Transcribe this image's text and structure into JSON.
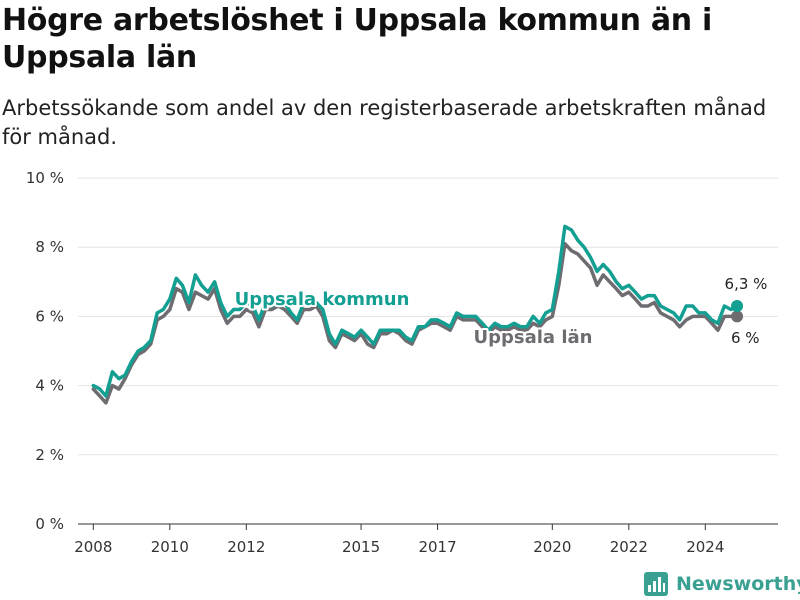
{
  "header": {
    "title": "Högre arbetslöshet i Uppsala kommun än i Uppsala län",
    "subtitle": "Arbetssökande som andel av den registerbaserade arbetskraften månad för månad."
  },
  "footer": {
    "logo_text": "Newsworthy",
    "logo_color": "#3aa091"
  },
  "chart_data": {
    "type": "line",
    "xlim": [
      2007.6,
      2025.9
    ],
    "ylim": [
      0,
      10
    ],
    "grid": true,
    "x_ticks": [
      2008,
      2010,
      2012,
      2015,
      2017,
      2020,
      2022,
      2024
    ],
    "x_tick_labels": [
      "2008",
      "2010",
      "2012",
      "2015",
      "2017",
      "2020",
      "2022",
      "2024"
    ],
    "y_ticks": [
      0,
      2,
      4,
      6,
      8,
      10
    ],
    "y_tick_labels": [
      "0 %",
      "2 %",
      "4 %",
      "6 %",
      "8 %",
      "10 %"
    ],
    "series": [
      {
        "name": "Uppsala län",
        "color": "#6e6c70",
        "end_label": "6 %",
        "points": [
          [
            2008.0,
            3.9
          ],
          [
            2008.17,
            3.7
          ],
          [
            2008.33,
            3.5
          ],
          [
            2008.5,
            4.0
          ],
          [
            2008.67,
            3.9
          ],
          [
            2008.83,
            4.2
          ],
          [
            2009.0,
            4.6
          ],
          [
            2009.17,
            4.9
          ],
          [
            2009.33,
            5.0
          ],
          [
            2009.5,
            5.2
          ],
          [
            2009.67,
            5.9
          ],
          [
            2009.83,
            6.0
          ],
          [
            2010.0,
            6.2
          ],
          [
            2010.17,
            6.8
          ],
          [
            2010.33,
            6.7
          ],
          [
            2010.5,
            6.2
          ],
          [
            2010.67,
            6.7
          ],
          [
            2010.83,
            6.6
          ],
          [
            2011.0,
            6.5
          ],
          [
            2011.17,
            6.8
          ],
          [
            2011.33,
            6.2
          ],
          [
            2011.5,
            5.8
          ],
          [
            2011.67,
            6.0
          ],
          [
            2011.83,
            6.0
          ],
          [
            2012.0,
            6.2
          ],
          [
            2012.17,
            6.1
          ],
          [
            2012.33,
            5.7
          ],
          [
            2012.5,
            6.2
          ],
          [
            2012.67,
            6.2
          ],
          [
            2012.83,
            6.3
          ],
          [
            2013.0,
            6.2
          ],
          [
            2013.17,
            6.0
          ],
          [
            2013.33,
            5.8
          ],
          [
            2013.5,
            6.2
          ],
          [
            2013.67,
            6.2
          ],
          [
            2013.83,
            6.3
          ],
          [
            2014.0,
            6.0
          ],
          [
            2014.17,
            5.3
          ],
          [
            2014.33,
            5.1
          ],
          [
            2014.5,
            5.5
          ],
          [
            2014.67,
            5.4
          ],
          [
            2014.83,
            5.3
          ],
          [
            2015.0,
            5.5
          ],
          [
            2015.17,
            5.2
          ],
          [
            2015.33,
            5.1
          ],
          [
            2015.5,
            5.5
          ],
          [
            2015.67,
            5.5
          ],
          [
            2015.83,
            5.6
          ],
          [
            2016.0,
            5.5
          ],
          [
            2016.17,
            5.3
          ],
          [
            2016.33,
            5.2
          ],
          [
            2016.5,
            5.6
          ],
          [
            2016.67,
            5.7
          ],
          [
            2016.83,
            5.8
          ],
          [
            2017.0,
            5.8
          ],
          [
            2017.17,
            5.7
          ],
          [
            2017.33,
            5.6
          ],
          [
            2017.5,
            6.0
          ],
          [
            2017.67,
            5.9
          ],
          [
            2017.83,
            5.9
          ],
          [
            2018.0,
            5.9
          ],
          [
            2018.17,
            5.7
          ],
          [
            2018.33,
            5.5
          ],
          [
            2018.5,
            5.7
          ],
          [
            2018.67,
            5.6
          ],
          [
            2018.83,
            5.6
          ],
          [
            2019.0,
            5.7
          ],
          [
            2019.17,
            5.6
          ],
          [
            2019.33,
            5.6
          ],
          [
            2019.5,
            5.8
          ],
          [
            2019.67,
            5.7
          ],
          [
            2019.83,
            5.9
          ],
          [
            2020.0,
            6.0
          ],
          [
            2020.17,
            6.9
          ],
          [
            2020.33,
            8.1
          ],
          [
            2020.5,
            7.9
          ],
          [
            2020.67,
            7.8
          ],
          [
            2020.83,
            7.6
          ],
          [
            2021.0,
            7.4
          ],
          [
            2021.17,
            6.9
          ],
          [
            2021.33,
            7.2
          ],
          [
            2021.5,
            7.0
          ],
          [
            2021.67,
            6.8
          ],
          [
            2021.83,
            6.6
          ],
          [
            2022.0,
            6.7
          ],
          [
            2022.17,
            6.5
          ],
          [
            2022.33,
            6.3
          ],
          [
            2022.5,
            6.3
          ],
          [
            2022.67,
            6.4
          ],
          [
            2022.83,
            6.1
          ],
          [
            2023.0,
            6.0
          ],
          [
            2023.17,
            5.9
          ],
          [
            2023.33,
            5.7
          ],
          [
            2023.5,
            5.9
          ],
          [
            2023.67,
            6.0
          ],
          [
            2023.83,
            6.0
          ],
          [
            2024.0,
            6.0
          ],
          [
            2024.17,
            5.8
          ],
          [
            2024.33,
            5.6
          ],
          [
            2024.5,
            6.0
          ],
          [
            2024.67,
            6.0
          ],
          [
            2024.83,
            6.0
          ]
        ]
      },
      {
        "name": "Uppsala kommun",
        "color": "#139f92",
        "end_label": "6,3 %",
        "points": [
          [
            2008.0,
            4.0
          ],
          [
            2008.17,
            3.9
          ],
          [
            2008.33,
            3.7
          ],
          [
            2008.5,
            4.4
          ],
          [
            2008.67,
            4.2
          ],
          [
            2008.83,
            4.3
          ],
          [
            2009.0,
            4.7
          ],
          [
            2009.17,
            5.0
          ],
          [
            2009.33,
            5.1
          ],
          [
            2009.5,
            5.3
          ],
          [
            2009.67,
            6.1
          ],
          [
            2009.83,
            6.2
          ],
          [
            2010.0,
            6.5
          ],
          [
            2010.17,
            7.1
          ],
          [
            2010.33,
            6.9
          ],
          [
            2010.5,
            6.4
          ],
          [
            2010.67,
            7.2
          ],
          [
            2010.83,
            6.9
          ],
          [
            2011.0,
            6.7
          ],
          [
            2011.17,
            7.0
          ],
          [
            2011.33,
            6.4
          ],
          [
            2011.5,
            6.0
          ],
          [
            2011.67,
            6.2
          ],
          [
            2011.83,
            6.2
          ],
          [
            2012.0,
            6.4
          ],
          [
            2012.17,
            6.3
          ],
          [
            2012.33,
            5.9
          ],
          [
            2012.5,
            6.4
          ],
          [
            2012.67,
            6.3
          ],
          [
            2012.83,
            6.4
          ],
          [
            2013.0,
            6.4
          ],
          [
            2013.17,
            6.1
          ],
          [
            2013.33,
            5.9
          ],
          [
            2013.5,
            6.4
          ],
          [
            2013.67,
            6.4
          ],
          [
            2013.83,
            6.4
          ],
          [
            2014.0,
            6.2
          ],
          [
            2014.17,
            5.5
          ],
          [
            2014.33,
            5.2
          ],
          [
            2014.5,
            5.6
          ],
          [
            2014.67,
            5.5
          ],
          [
            2014.83,
            5.4
          ],
          [
            2015.0,
            5.6
          ],
          [
            2015.17,
            5.4
          ],
          [
            2015.33,
            5.2
          ],
          [
            2015.5,
            5.6
          ],
          [
            2015.67,
            5.6
          ],
          [
            2015.83,
            5.6
          ],
          [
            2016.0,
            5.6
          ],
          [
            2016.17,
            5.4
          ],
          [
            2016.33,
            5.3
          ],
          [
            2016.5,
            5.7
          ],
          [
            2016.67,
            5.7
          ],
          [
            2016.83,
            5.9
          ],
          [
            2017.0,
            5.9
          ],
          [
            2017.17,
            5.8
          ],
          [
            2017.33,
            5.7
          ],
          [
            2017.5,
            6.1
          ],
          [
            2017.67,
            6.0
          ],
          [
            2017.83,
            6.0
          ],
          [
            2018.0,
            6.0
          ],
          [
            2018.17,
            5.8
          ],
          [
            2018.33,
            5.6
          ],
          [
            2018.5,
            5.8
          ],
          [
            2018.67,
            5.7
          ],
          [
            2018.83,
            5.7
          ],
          [
            2019.0,
            5.8
          ],
          [
            2019.17,
            5.7
          ],
          [
            2019.33,
            5.7
          ],
          [
            2019.5,
            6.0
          ],
          [
            2019.67,
            5.8
          ],
          [
            2019.83,
            6.1
          ],
          [
            2020.0,
            6.2
          ],
          [
            2020.17,
            7.3
          ],
          [
            2020.33,
            8.6
          ],
          [
            2020.5,
            8.5
          ],
          [
            2020.67,
            8.2
          ],
          [
            2020.83,
            8.0
          ],
          [
            2021.0,
            7.7
          ],
          [
            2021.17,
            7.3
          ],
          [
            2021.33,
            7.5
          ],
          [
            2021.5,
            7.3
          ],
          [
            2021.67,
            7.0
          ],
          [
            2021.83,
            6.8
          ],
          [
            2022.0,
            6.9
          ],
          [
            2022.17,
            6.7
          ],
          [
            2022.33,
            6.5
          ],
          [
            2022.5,
            6.6
          ],
          [
            2022.67,
            6.6
          ],
          [
            2022.83,
            6.3
          ],
          [
            2023.0,
            6.2
          ],
          [
            2023.17,
            6.1
          ],
          [
            2023.33,
            5.9
          ],
          [
            2023.5,
            6.3
          ],
          [
            2023.67,
            6.3
          ],
          [
            2023.83,
            6.1
          ],
          [
            2024.0,
            6.1
          ],
          [
            2024.17,
            5.9
          ],
          [
            2024.33,
            5.8
          ],
          [
            2024.5,
            6.3
          ],
          [
            2024.67,
            6.2
          ],
          [
            2024.83,
            6.3
          ]
        ]
      }
    ]
  }
}
